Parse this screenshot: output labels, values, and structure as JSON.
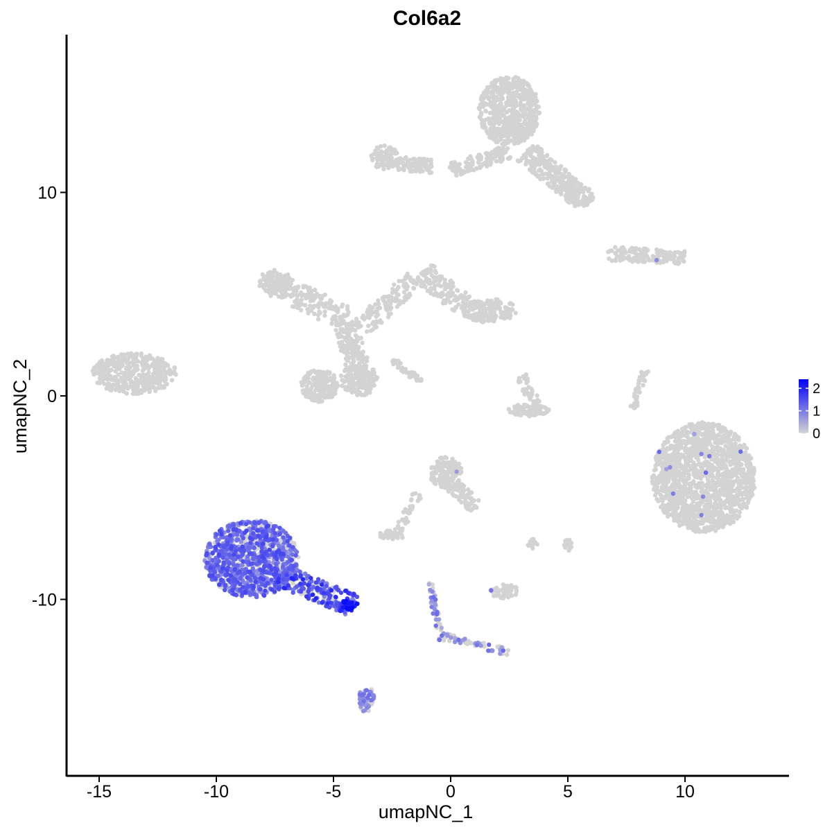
{
  "chart_data": {
    "type": "scatter",
    "title": "Col6a2",
    "xlabel": "umapNC_1",
    "ylabel": "umapNC_2",
    "xlim": [
      -16.5,
      14.5
    ],
    "ylim": [
      -18.5,
      18.5
    ],
    "x_ticks": [
      -15,
      -10,
      -5,
      0,
      5,
      10
    ],
    "x_tick_labels": [
      "-15",
      "-10",
      "-5",
      "0",
      "5",
      "10"
    ],
    "y_ticks": [
      -10,
      0,
      10
    ],
    "y_tick_labels": [
      "-10",
      "0",
      "10"
    ],
    "grid": false,
    "legend": {
      "placement": "right",
      "type": "colorbar",
      "ticks": [
        0,
        1,
        2
      ],
      "tick_labels": [
        "0",
        "1",
        "2"
      ],
      "range": [
        0,
        2.4
      ],
      "low_color": "#d3d3d3",
      "high_color": "#0000ff"
    },
    "point_color_zero": "#d3d3d3",
    "clusters": [
      {
        "shape": "ellipse",
        "cx": -13.5,
        "cy": 1.1,
        "rx": 1.8,
        "ry": 1.0,
        "n": 420,
        "expr": 0
      },
      {
        "shape": "ellipse",
        "cx": 10.8,
        "cy": -4.0,
        "rx": 2.2,
        "ry": 2.7,
        "n": 1500,
        "expr": 0.005
      },
      {
        "shape": "ellipse",
        "cx": 2.5,
        "cy": 14.0,
        "rx": 1.3,
        "ry": 1.7,
        "n": 650,
        "expr": 0
      },
      {
        "shape": "segment",
        "x1": 0,
        "y1": 11.1,
        "x2": 2.5,
        "y2": 12.0,
        "w": 0.35,
        "n": 120,
        "expr": 0
      },
      {
        "shape": "segment",
        "x1": 3.2,
        "y1": 12.0,
        "x2": 5.5,
        "y2": 9.8,
        "w": 0.55,
        "n": 260,
        "expr": 0
      },
      {
        "shape": "ellipse",
        "cx": 5.5,
        "cy": 9.8,
        "rx": 0.6,
        "ry": 0.5,
        "n": 80,
        "expr": 0
      },
      {
        "shape": "segment",
        "x1": -3.2,
        "y1": 11.5,
        "x2": -0.8,
        "y2": 11.3,
        "w": 0.35,
        "n": 110,
        "expr": 0
      },
      {
        "shape": "ellipse",
        "cx": -2.8,
        "cy": 11.8,
        "rx": 0.6,
        "ry": 0.5,
        "n": 60,
        "expr": 0
      },
      {
        "shape": "segment",
        "x1": 6.7,
        "y1": 7.0,
        "x2": 10.0,
        "y2": 6.8,
        "w": 0.35,
        "n": 150,
        "expr": 0.01
      },
      {
        "shape": "ellipse",
        "cx": -7.5,
        "cy": 5.6,
        "rx": 0.7,
        "ry": 0.6,
        "n": 110,
        "expr": 0
      },
      {
        "shape": "segment",
        "x1": -7.5,
        "y1": 5.5,
        "x2": -4.5,
        "y2": 3.8,
        "w": 0.6,
        "n": 190,
        "expr": 0
      },
      {
        "shape": "segment",
        "x1": -4.5,
        "y1": 3.6,
        "x2": -4.0,
        "y2": 1.6,
        "w": 0.5,
        "n": 130,
        "expr": 0
      },
      {
        "shape": "ellipse",
        "cx": -5.6,
        "cy": 0.5,
        "rx": 0.8,
        "ry": 0.8,
        "n": 170,
        "expr": 0
      },
      {
        "shape": "ellipse",
        "cx": -3.9,
        "cy": 0.8,
        "rx": 0.8,
        "ry": 0.8,
        "n": 170,
        "expr": 0
      },
      {
        "shape": "segment",
        "x1": -3.8,
        "y1": 3.3,
        "x2": -1.5,
        "y2": 5.8,
        "w": 0.5,
        "n": 130,
        "expr": 0
      },
      {
        "shape": "segment",
        "x1": -1.2,
        "y1": 6.1,
        "x2": 0.5,
        "y2": 4.5,
        "w": 0.55,
        "n": 130,
        "expr": 0
      },
      {
        "shape": "ellipse",
        "cx": 1.6,
        "cy": 4.2,
        "rx": 1.2,
        "ry": 0.6,
        "n": 190,
        "expr": 0
      },
      {
        "shape": "segment",
        "x1": -2.5,
        "y1": 1.8,
        "x2": -1.3,
        "y2": 0.7,
        "w": 0.15,
        "n": 40,
        "expr": 0
      },
      {
        "shape": "ellipse",
        "cx": 3.3,
        "cy": -0.7,
        "rx": 0.9,
        "ry": 0.3,
        "n": 90,
        "expr": 0
      },
      {
        "shape": "segment",
        "x1": 3.0,
        "y1": 1.0,
        "x2": 3.6,
        "y2": -0.4,
        "w": 0.25,
        "n": 40,
        "expr": 0
      },
      {
        "shape": "segment",
        "x1": 8.3,
        "y1": 1.3,
        "x2": 7.8,
        "y2": -0.6,
        "w": 0.15,
        "n": 40,
        "expr": 0
      },
      {
        "shape": "ellipse",
        "cx": -0.2,
        "cy": -3.8,
        "rx": 0.7,
        "ry": 0.8,
        "n": 150,
        "expr": 0.01
      },
      {
        "shape": "segment",
        "x1": 0.1,
        "y1": -4.4,
        "x2": 1.1,
        "y2": -5.5,
        "w": 0.35,
        "n": 70,
        "expr": 0
      },
      {
        "shape": "segment",
        "x1": -1.4,
        "y1": -4.8,
        "x2": -2.2,
        "y2": -6.6,
        "w": 0.2,
        "n": 35,
        "expr": 0
      },
      {
        "shape": "ellipse",
        "cx": -2.5,
        "cy": -6.8,
        "rx": 0.6,
        "ry": 0.25,
        "n": 40,
        "expr": 0
      },
      {
        "shape": "ellipse",
        "cx": 2.3,
        "cy": -9.6,
        "rx": 0.6,
        "ry": 0.35,
        "n": 50,
        "expr": 0.08
      },
      {
        "shape": "ellipse",
        "cx": 3.5,
        "cy": -7.3,
        "rx": 0.2,
        "ry": 0.3,
        "n": 14,
        "expr": 0
      },
      {
        "shape": "ellipse",
        "cx": 5.0,
        "cy": -7.3,
        "rx": 0.2,
        "ry": 0.35,
        "n": 16,
        "expr": 0
      },
      {
        "shape": "ellipse",
        "cx": -8.5,
        "cy": -8.0,
        "rx": 2.0,
        "ry": 1.9,
        "n": 1100,
        "expr": 0.7,
        "min": 0.7,
        "max": 1.6
      },
      {
        "shape": "segment",
        "x1": -7.3,
        "y1": -8.8,
        "x2": -4.2,
        "y2": -10.3,
        "w": 0.55,
        "n": 230,
        "expr": 0.7,
        "min": 0.8,
        "max": 2.0
      },
      {
        "shape": "ellipse",
        "cx": -4.3,
        "cy": -10.3,
        "rx": 0.4,
        "ry": 0.25,
        "n": 40,
        "expr": 0.95,
        "min": 1.4,
        "max": 2.4
      },
      {
        "shape": "segment",
        "x1": -0.9,
        "y1": -9.2,
        "x2": -0.4,
        "y2": -12.0,
        "w": 0.12,
        "n": 40,
        "expr": 0.65,
        "min": 0.4,
        "max": 1.2
      },
      {
        "shape": "segment",
        "x1": -0.4,
        "y1": -11.8,
        "x2": 2.5,
        "y2": -12.6,
        "w": 0.18,
        "n": 60,
        "expr": 0.5,
        "min": 0.4,
        "max": 1.2
      },
      {
        "shape": "ellipse",
        "cx": -3.6,
        "cy": -14.9,
        "rx": 0.35,
        "ry": 0.65,
        "n": 60,
        "expr": 0.75,
        "min": 0.5,
        "max": 1.2
      }
    ]
  }
}
